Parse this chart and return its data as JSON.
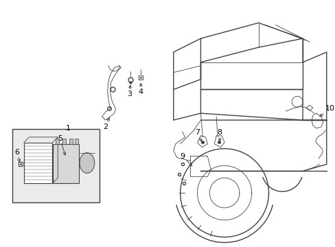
{
  "bg_color": "#ffffff",
  "line_color": "#404040",
  "label_color": "#000000",
  "box_bg": "#e8e8e8",
  "figsize": [
    4.89,
    3.6
  ],
  "dpi": 100
}
